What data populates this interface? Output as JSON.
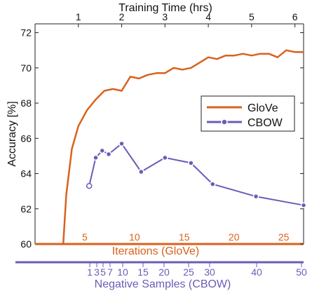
{
  "chart_data": {
    "type": "line",
    "ylabel": "Accuracy [%]",
    "ylim": [
      60,
      72.5
    ],
    "yticks": [
      "60",
      "62",
      "64",
      "66",
      "68",
      "70",
      "72"
    ],
    "grid": false,
    "legend_position": "right-middle",
    "top_axis": {
      "label": "Training Time (hrs)",
      "lim": [
        0,
        6.2
      ],
      "ticks": [
        "1",
        "2",
        "3",
        "4",
        "5",
        "6"
      ]
    },
    "glove_axis": {
      "label": "Iterations (GloVe)",
      "lim": [
        0,
        27
      ],
      "ticks": [
        "5",
        "10",
        "15",
        "20",
        "25"
      ]
    },
    "cbow_axis": {
      "label": "Negative Samples (CBOW)",
      "ticks": [
        "1",
        "3",
        "5",
        "7",
        "10",
        "15",
        "20",
        "25",
        "30",
        "40",
        "50"
      ]
    },
    "colors": {
      "glove": "#D9621C",
      "cbow": "#6B5CB8"
    },
    "series": [
      {
        "name": "GloVe",
        "x_hrs": [
          0.0,
          0.65,
          0.72,
          0.85,
          1.0,
          1.2,
          1.4,
          1.6,
          1.8,
          2.0,
          2.2,
          2.4,
          2.6,
          2.8,
          3.0,
          3.2,
          3.4,
          3.6,
          3.8,
          4.0,
          4.2,
          4.4,
          4.6,
          4.8,
          5.0,
          5.2,
          5.4,
          5.6,
          5.8,
          6.0,
          6.2
        ],
        "values": [
          60.0,
          60.0,
          62.8,
          65.4,
          66.7,
          67.6,
          68.2,
          68.7,
          68.8,
          68.7,
          69.5,
          69.4,
          69.6,
          69.7,
          69.7,
          70.0,
          69.9,
          70.0,
          70.3,
          70.6,
          70.5,
          70.7,
          70.7,
          70.8,
          70.7,
          70.8,
          70.8,
          70.6,
          71.0,
          70.9,
          70.9
        ]
      },
      {
        "name": "CBOW",
        "x_hrs": [
          1.25,
          1.4,
          1.55,
          1.7,
          2.0,
          2.45,
          3.0,
          3.6,
          4.1,
          5.1,
          6.2
        ],
        "values": [
          63.3,
          64.9,
          65.3,
          65.1,
          65.7,
          64.1,
          64.9,
          64.6,
          63.4,
          62.7,
          62.2
        ]
      }
    ]
  }
}
